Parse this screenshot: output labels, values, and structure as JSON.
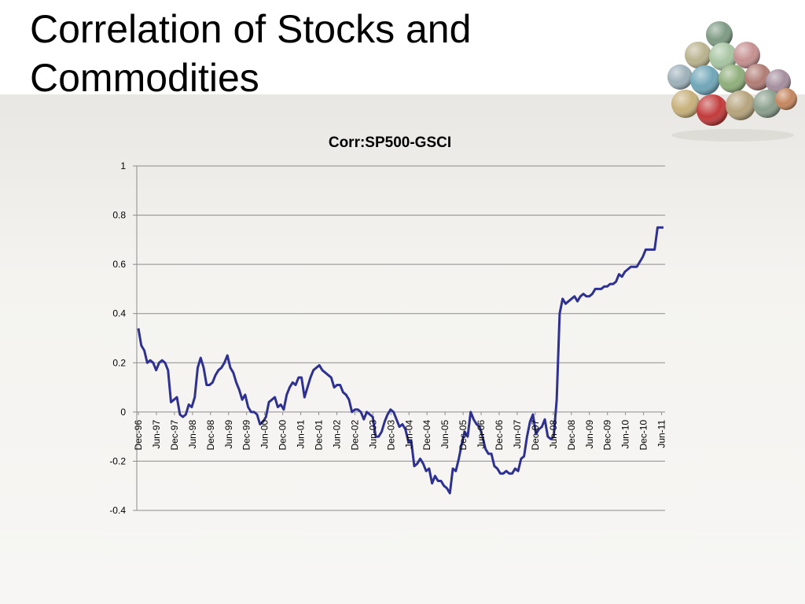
{
  "slide": {
    "title_line1": "Correlation of Stocks and",
    "title_line2": "Commodities"
  },
  "colors": {
    "line": "#2e3192",
    "grid": "#8c8c8c",
    "axis": "#8c8c8c"
  },
  "chart_data": {
    "type": "line",
    "title": "Corr:SP500-GSCI",
    "xlabel": "",
    "ylabel": "",
    "ylim": [
      -0.4,
      1
    ],
    "yticks": [
      -0.4,
      -0.2,
      0,
      0.2,
      0.4,
      0.6,
      0.8,
      1
    ],
    "ytick_labels": [
      "-0.4",
      "-0.2",
      "0",
      "0.2",
      "0.4",
      "0.6",
      "0.8",
      "1"
    ],
    "xtick_labels": [
      "Dec-96",
      "Jun-97",
      "Dec-97",
      "Jun-98",
      "Dec-98",
      "Jun-99",
      "Dec-99",
      "Jun-00",
      "Dec-00",
      "Jun-01",
      "Dec-01",
      "Jun-02",
      "Dec-02",
      "Jun-03",
      "Dec-03",
      "Jun-04",
      "Dec-04",
      "Jun-05",
      "Dec-05",
      "Jun-06",
      "Dec-06",
      "Jun-07",
      "Dec-07",
      "Jun-08",
      "Dec-08",
      "Jun-09",
      "Dec-09",
      "Jun-10",
      "Dec-10",
      "Jun-11"
    ],
    "grid": true,
    "legend": "none",
    "series": [
      {
        "values": [
          0.34,
          0.27,
          0.25,
          0.2,
          0.21,
          0.2,
          0.17,
          0.2,
          0.21,
          0.2,
          0.17,
          0.04,
          0.05,
          0.06,
          -0.01,
          -0.02,
          -0.01,
          0.03,
          0.02,
          0.06,
          0.18,
          0.22,
          0.18,
          0.11,
          0.11,
          0.12,
          0.15,
          0.17,
          0.18,
          0.2,
          0.23,
          0.18,
          0.16,
          0.12,
          0.09,
          0.05,
          0.07,
          0.02,
          0.0,
          0.0,
          -0.01,
          -0.05,
          -0.04,
          -0.02,
          0.04,
          0.05,
          0.06,
          0.02,
          0.03,
          0.01,
          0.07,
          0.1,
          0.12,
          0.11,
          0.14,
          0.14,
          0.06,
          0.1,
          0.14,
          0.17,
          0.18,
          0.19,
          0.17,
          0.16,
          0.15,
          0.14,
          0.1,
          0.11,
          0.11,
          0.08,
          0.07,
          0.05,
          0.0,
          0.01,
          0.01,
          0.0,
          -0.03,
          0.0,
          -0.01,
          -0.02,
          -0.1,
          -0.1,
          -0.08,
          -0.04,
          -0.01,
          0.01,
          0.0,
          -0.03,
          -0.06,
          -0.05,
          -0.07,
          -0.12,
          -0.12,
          -0.22,
          -0.21,
          -0.19,
          -0.21,
          -0.24,
          -0.23,
          -0.29,
          -0.26,
          -0.28,
          -0.28,
          -0.3,
          -0.31,
          -0.33,
          -0.23,
          -0.24,
          -0.19,
          -0.13,
          -0.08,
          -0.1,
          0.0,
          -0.03,
          -0.05,
          -0.06,
          -0.1,
          -0.15,
          -0.17,
          -0.17,
          -0.22,
          -0.23,
          -0.25,
          -0.25,
          -0.24,
          -0.25,
          -0.25,
          -0.23,
          -0.24,
          -0.19,
          -0.18,
          -0.1,
          -0.04,
          -0.01,
          -0.09,
          -0.07,
          -0.06,
          -0.03,
          -0.1,
          -0.11,
          -0.1,
          0.05,
          0.4,
          0.46,
          0.44,
          0.45,
          0.46,
          0.47,
          0.45,
          0.47,
          0.48,
          0.47,
          0.47,
          0.48,
          0.5,
          0.5,
          0.5,
          0.51,
          0.51,
          0.52,
          0.52,
          0.53,
          0.56,
          0.55,
          0.57,
          0.58,
          0.59,
          0.59,
          0.59,
          0.61,
          0.63,
          0.66,
          0.66,
          0.66,
          0.66,
          0.75,
          0.75,
          0.75
        ]
      }
    ]
  }
}
